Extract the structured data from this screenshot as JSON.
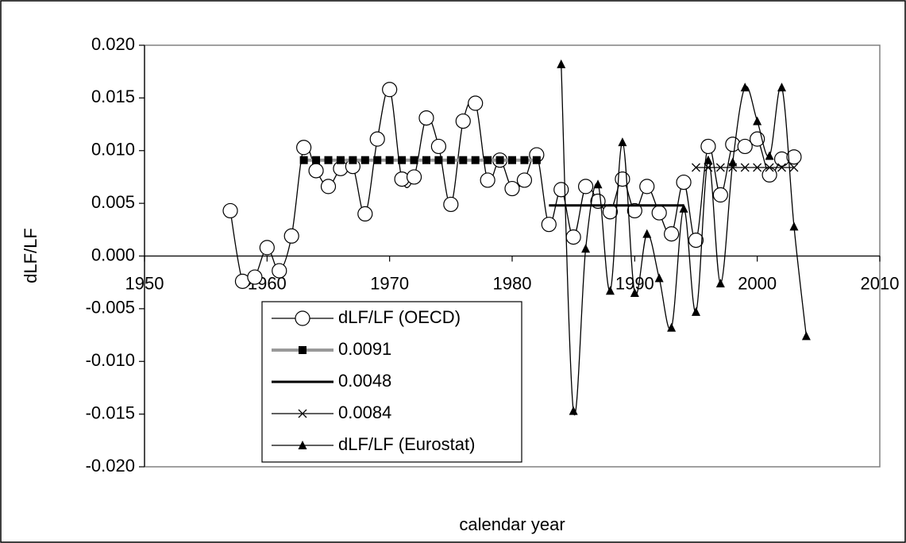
{
  "chart_data": {
    "type": "line",
    "x_label": "calendar year",
    "y_label": "dLF/LF",
    "xlim": [
      1950,
      2010
    ],
    "xticks": [
      1950,
      1960,
      1970,
      1980,
      1990,
      2000,
      2010
    ],
    "ylim": [
      -0.02,
      0.02
    ],
    "yticks": [
      {
        "value": -0.02,
        "label": "-0.020"
      },
      {
        "value": -0.015,
        "label": "-0.015"
      },
      {
        "value": -0.01,
        "label": "-0.010"
      },
      {
        "value": -0.005,
        "label": "-0.005"
      },
      {
        "value": 0,
        "label": "0.000"
      },
      {
        "value": 0.005,
        "label": "0.005"
      },
      {
        "value": 0.01,
        "label": "0.010"
      },
      {
        "value": 0.015,
        "label": "0.015"
      },
      {
        "value": 0.02,
        "label": "0.020"
      }
    ],
    "grid": false,
    "legend": "lower-left",
    "series": [
      {
        "name": "dLF/LF (OECD)",
        "color": "#000000",
        "marker": "circle",
        "smooth": true,
        "x": [
          1957,
          1958,
          1959,
          1960,
          1961,
          1962,
          1963,
          1964,
          1965,
          1966,
          1967,
          1968,
          1969,
          1970,
          1971,
          1972,
          1973,
          1974,
          1975,
          1976,
          1977,
          1978,
          1979,
          1980,
          1981,
          1982,
          1983,
          1984,
          1985,
          1986,
          1987,
          1988,
          1989,
          1990,
          1991,
          1992,
          1993,
          1994,
          1995,
          1996,
          1997,
          1998,
          1999,
          2000,
          2001,
          2002,
          2003
        ],
        "values": [
          0.0043,
          -0.0024,
          -0.002,
          0.0008,
          -0.0014,
          0.0019,
          0.0103,
          0.0081,
          0.0066,
          0.0083,
          0.0085,
          0.004,
          0.0111,
          0.0158,
          0.0073,
          0.0075,
          0.0131,
          0.0104,
          0.0049,
          0.0128,
          0.0145,
          0.0072,
          0.0091,
          0.0064,
          0.0072,
          0.0096,
          0.003,
          0.0063,
          0.0018,
          0.0066,
          0.0052,
          0.0042,
          0.0073,
          0.0043,
          0.0066,
          0.0041,
          0.0021,
          0.007,
          0.0015,
          0.0104,
          0.0058,
          0.0106,
          0.0104,
          0.0111,
          0.0077,
          0.0092,
          0.0094
        ]
      },
      {
        "name": "0.0091",
        "color": "#999999",
        "marker": "square",
        "smooth": false,
        "x": [
          1963,
          1964,
          1965,
          1966,
          1967,
          1968,
          1969,
          1970,
          1971,
          1972,
          1973,
          1974,
          1975,
          1976,
          1977,
          1978,
          1979,
          1980,
          1981,
          1982
        ],
        "values": [
          0.0091,
          0.0091,
          0.0091,
          0.0091,
          0.0091,
          0.0091,
          0.0091,
          0.0091,
          0.0091,
          0.0091,
          0.0091,
          0.0091,
          0.0091,
          0.0091,
          0.0091,
          0.0091,
          0.0091,
          0.0091,
          0.0091,
          0.0091
        ]
      },
      {
        "name": "0.0048",
        "color": "#000000",
        "marker": "none",
        "smooth": false,
        "x": [
          1983,
          1994
        ],
        "values": [
          0.0048,
          0.0048
        ]
      },
      {
        "name": "0.0084",
        "color": "#000000",
        "marker": "x",
        "smooth": false,
        "x": [
          1995,
          1996,
          1997,
          1998,
          1999,
          2000,
          2001,
          2002,
          2003
        ],
        "values": [
          0.0084,
          0.0084,
          0.0084,
          0.0084,
          0.0084,
          0.0084,
          0.0084,
          0.0084,
          0.0084
        ]
      },
      {
        "name": "dLF/LF (Eurostat)",
        "color": "#000000",
        "marker": "triangle",
        "smooth": true,
        "x": [
          1984,
          1985,
          1986,
          1987,
          1988,
          1989,
          1990,
          1991,
          1992,
          1993,
          1994,
          1995,
          1996,
          1997,
          1998,
          1999,
          2000,
          2001,
          2002,
          2003,
          2004
        ],
        "values": [
          0.0182,
          -0.0147,
          0.0007,
          0.0068,
          -0.0033,
          0.0108,
          -0.0035,
          0.0021,
          -0.0021,
          -0.0068,
          0.0045,
          -0.0053,
          0.0091,
          -0.0026,
          0.0089,
          0.016,
          0.0128,
          0.0095,
          0.016,
          0.0028,
          -0.0076
        ]
      }
    ]
  }
}
